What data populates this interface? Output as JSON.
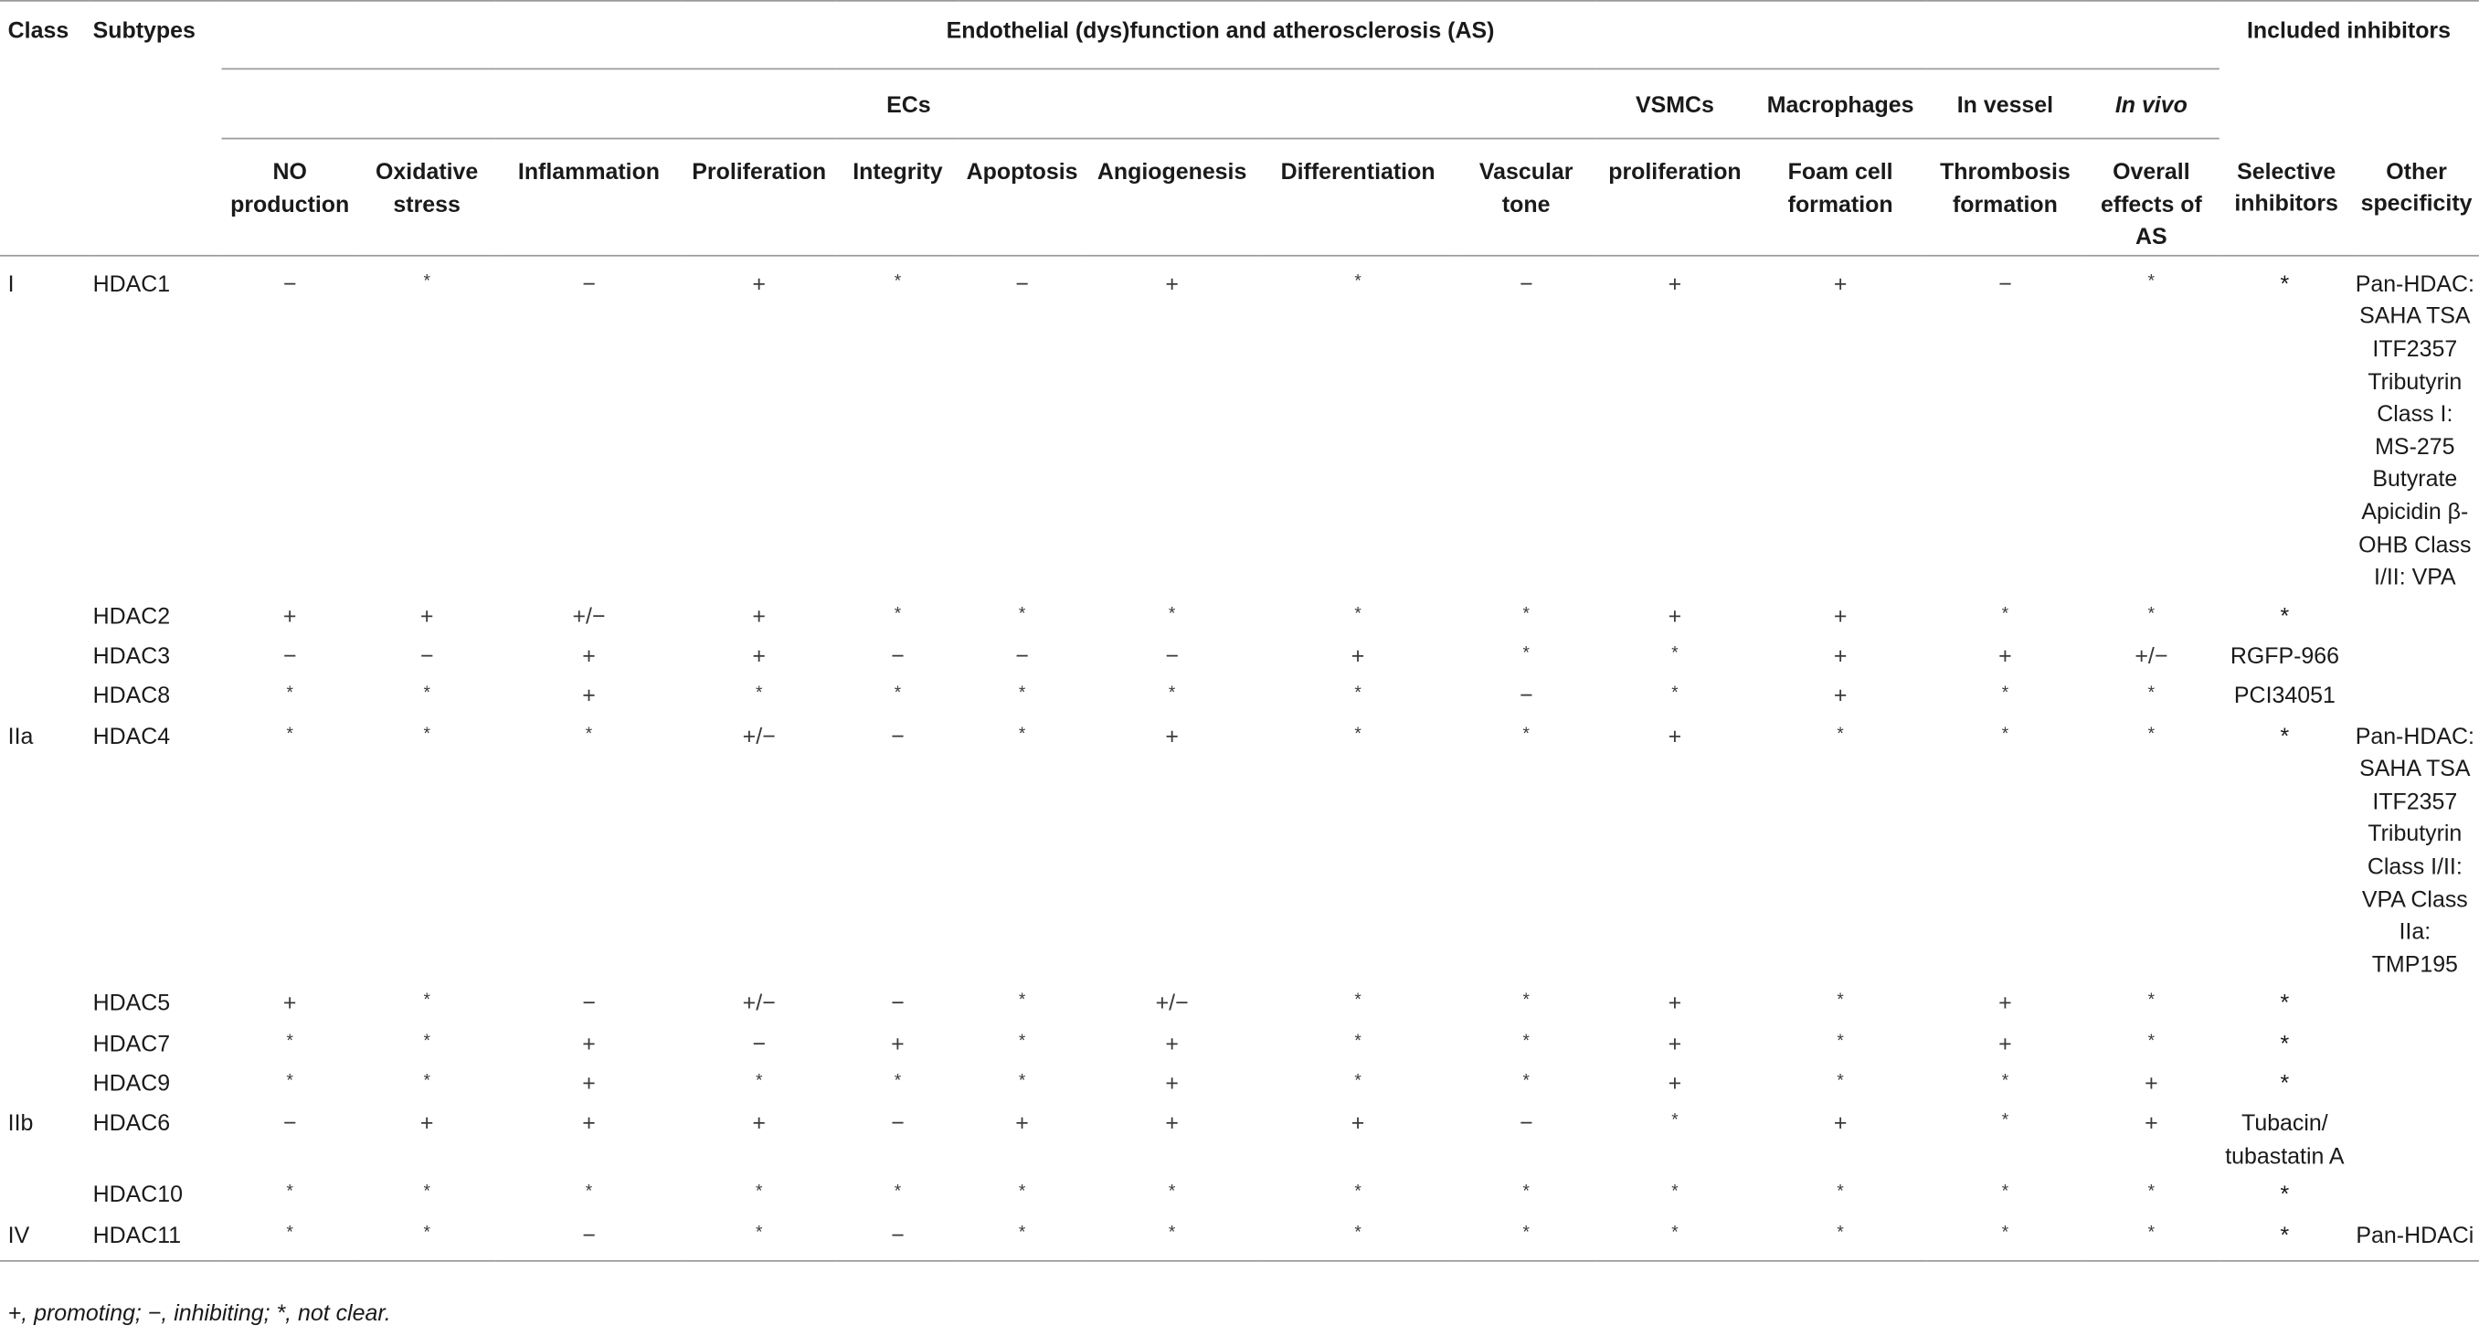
{
  "header": {
    "class": "Class",
    "subtypes": "Subtypes",
    "group_title": "Endothelial (dys)function and atherosclerosis (AS)",
    "inhibitors_title": "Included inhibitors",
    "ecs": "ECs",
    "vsmcs": "VSMCs",
    "macrophages": "Macrophages",
    "in_vessel": "In vessel",
    "in_vivo": "In vivo",
    "cols": [
      "NO production",
      "Oxidative stress",
      "Inflammation",
      "Proliferation",
      "Integrity",
      "Apoptosis",
      "Angiogenesis",
      "Differentiation",
      "Vascular tone",
      "proliferation",
      "Foam cell formation",
      "Thrombosis formation",
      "Overall effects of AS",
      "Selective inhibitors",
      "Other specificity"
    ]
  },
  "rows": [
    {
      "class": "I",
      "subtype": "HDAC1",
      "values": [
        "−",
        "*",
        "−",
        "+",
        "*",
        "−",
        "+",
        "*",
        "−",
        "+",
        "+",
        "−",
        "*"
      ],
      "selective": "*",
      "other": "Pan-HDAC: SAHA TSA ITF2357 Tributyrin Class I: MS-275 Butyrate Apicidin β-OHB Class I/II: VPA"
    },
    {
      "class": "",
      "subtype": "HDAC2",
      "values": [
        "+",
        "+",
        "+/−",
        "+",
        "*",
        "*",
        "*",
        "*",
        "*",
        "+",
        "+",
        "*",
        "*"
      ],
      "selective": "*",
      "other": ""
    },
    {
      "class": "",
      "subtype": "HDAC3",
      "values": [
        "−",
        "−",
        "+",
        "+",
        "−",
        "−",
        "−",
        "+",
        "*",
        "*",
        "+",
        "+",
        "+/−"
      ],
      "selective": "RGFP-966",
      "other": ""
    },
    {
      "class": "",
      "subtype": "HDAC8",
      "values": [
        "*",
        "*",
        "+",
        "*",
        "*",
        "*",
        "*",
        "*",
        "−",
        "*",
        "+",
        "*",
        "*"
      ],
      "selective": "PCI34051",
      "other": ""
    },
    {
      "class": "IIa",
      "subtype": "HDAC4",
      "values": [
        "*",
        "*",
        "*",
        "+/−",
        "−",
        "*",
        "+",
        "*",
        "*",
        "+",
        "*",
        "*",
        "*"
      ],
      "selective": "*",
      "other": "Pan-HDAC: SAHA TSA ITF2357 Tributyrin Class I/II: VPA Class IIa: TMP195"
    },
    {
      "class": "",
      "subtype": "HDAC5",
      "values": [
        "+",
        "*",
        "−",
        "+/−",
        "−",
        "*",
        "+/−",
        "*",
        "*",
        "+",
        "*",
        "+",
        "*"
      ],
      "selective": "*",
      "other": ""
    },
    {
      "class": "",
      "subtype": "HDAC7",
      "values": [
        "*",
        "*",
        "+",
        "−",
        "+",
        "*",
        "+",
        "*",
        "*",
        "+",
        "*",
        "+",
        "*"
      ],
      "selective": "*",
      "other": ""
    },
    {
      "class": "",
      "subtype": "HDAC9",
      "values": [
        "*",
        "*",
        "+",
        "*",
        "*",
        "*",
        "+",
        "*",
        "*",
        "+",
        "*",
        "*",
        "+"
      ],
      "selective": "*",
      "other": ""
    },
    {
      "class": "IIb",
      "subtype": "HDAC6",
      "values": [
        "−",
        "+",
        "+",
        "+",
        "−",
        "+",
        "+",
        "+",
        "−",
        "*",
        "+",
        "*",
        "+"
      ],
      "selective": "Tubacin/ tubastatin A",
      "other": ""
    },
    {
      "class": "",
      "subtype": "HDAC10",
      "values": [
        "*",
        "*",
        "*",
        "*",
        "*",
        "*",
        "*",
        "*",
        "*",
        "*",
        "*",
        "*",
        "*"
      ],
      "selective": "*",
      "other": ""
    },
    {
      "class": "IV",
      "subtype": "HDAC11",
      "values": [
        "*",
        "*",
        "−",
        "*",
        "−",
        "*",
        "*",
        "*",
        "*",
        "*",
        "*",
        "*",
        "*"
      ],
      "selective": "*",
      "other": "Pan-HDACi"
    }
  ],
  "footnote": "+, promoting; −, inhibiting; *, not clear."
}
